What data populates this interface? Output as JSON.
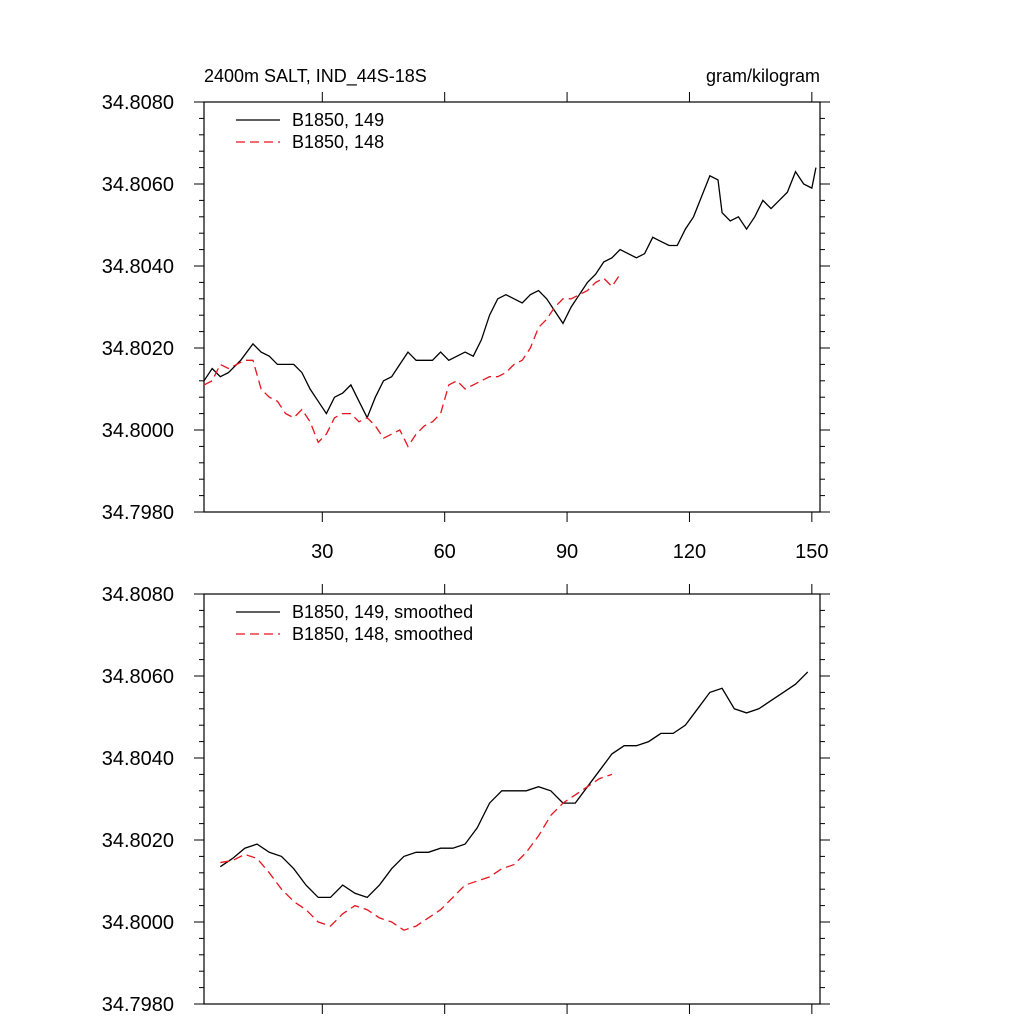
{
  "chart_data": [
    {
      "type": "line",
      "title_left": "2400m SALT, IND_44S-18S",
      "title_right": "gram/kilogram",
      "xlim": [
        1,
        152
      ],
      "ylim": [
        34.798,
        34.808
      ],
      "xticks": [
        30,
        60,
        90,
        120,
        150
      ],
      "xtick_labels": [
        "30",
        "60",
        "90",
        "120",
        "150"
      ],
      "yticks": [
        34.798,
        34.8,
        34.802,
        34.804,
        34.806,
        34.808
      ],
      "ytick_labels": [
        "34.7980",
        "34.8000",
        "34.8020",
        "34.8040",
        "34.8060",
        "34.8080"
      ],
      "legend_position": "top-left",
      "series": [
        {
          "name": "B1850, 149",
          "color": "#000000",
          "dash": "solid",
          "x": [
            1,
            3,
            5,
            7,
            10,
            13,
            15,
            17,
            19,
            21,
            23,
            25,
            27,
            29,
            31,
            33,
            35,
            37,
            39,
            41,
            43,
            45,
            47,
            49,
            51,
            53,
            55,
            57,
            59,
            61,
            63,
            65,
            67,
            69,
            71,
            73,
            75,
            77,
            79,
            81,
            83,
            85,
            87,
            89,
            91,
            93,
            95,
            97,
            99,
            101,
            103,
            105,
            107,
            109,
            111,
            113,
            115,
            117,
            119,
            121,
            123,
            125,
            127,
            128,
            130,
            132,
            134,
            136,
            138,
            140,
            142,
            144,
            146,
            148,
            150,
            151
          ],
          "values": [
            34.8012,
            34.8015,
            34.8013,
            34.8014,
            34.8017,
            34.8021,
            34.8019,
            34.8018,
            34.8016,
            34.8016,
            34.8016,
            34.8014,
            34.801,
            34.8007,
            34.8004,
            34.8008,
            34.8009,
            34.8011,
            34.8007,
            34.8003,
            34.8008,
            34.8012,
            34.8013,
            34.8016,
            34.8019,
            34.8017,
            34.8017,
            34.8017,
            34.8019,
            34.8017,
            34.8018,
            34.8019,
            34.8018,
            34.8022,
            34.8028,
            34.8032,
            34.8033,
            34.8032,
            34.8031,
            34.8033,
            34.8034,
            34.8032,
            34.8029,
            34.8026,
            34.803,
            34.8033,
            34.8036,
            34.8038,
            34.8041,
            34.8042,
            34.8044,
            34.8043,
            34.8042,
            34.8043,
            34.8047,
            34.8046,
            34.8045,
            34.8045,
            34.8049,
            34.8052,
            34.8057,
            34.8062,
            34.8061,
            34.8053,
            34.8051,
            34.8052,
            34.8049,
            34.8052,
            34.8056,
            34.8054,
            34.8056,
            34.8058,
            34.8063,
            34.806,
            34.8059,
            34.8064
          ]
        },
        {
          "name": "B1850, 148",
          "color": "#e8141e",
          "dash": "dashed",
          "x": [
            1,
            3,
            5,
            7,
            9,
            11,
            13,
            15,
            17,
            19,
            21,
            23,
            25,
            27,
            29,
            31,
            33,
            35,
            37,
            39,
            41,
            43,
            45,
            47,
            49,
            51,
            53,
            55,
            57,
            59,
            61,
            63,
            65,
            67,
            69,
            71,
            73,
            75,
            77,
            79,
            81,
            83,
            85,
            87,
            89,
            91,
            93,
            95,
            97,
            99,
            101,
            103
          ],
          "values": [
            34.8011,
            34.8012,
            34.8016,
            34.8015,
            34.8016,
            34.8017,
            34.8017,
            34.801,
            34.8008,
            34.8007,
            34.8004,
            34.8003,
            34.8005,
            34.8002,
            34.7997,
            34.7999,
            34.8003,
            34.8004,
            34.8004,
            34.8002,
            34.8003,
            34.8001,
            34.7998,
            34.7999,
            34.8,
            34.7996,
            34.7999,
            34.8001,
            34.8002,
            34.8004,
            34.8011,
            34.8012,
            34.801,
            34.8011,
            34.8012,
            34.8013,
            34.8013,
            34.8014,
            34.8016,
            34.8017,
            34.802,
            34.8025,
            34.8027,
            34.803,
            34.8032,
            34.8032,
            34.8033,
            34.8034,
            34.8036,
            34.8037,
            34.8035,
            34.8038
          ]
        }
      ]
    },
    {
      "type": "line",
      "xlim": [
        1,
        152
      ],
      "ylim": [
        34.798,
        34.808
      ],
      "xticks": [
        30,
        60,
        90,
        120,
        150
      ],
      "yticks": [
        34.798,
        34.8,
        34.802,
        34.804,
        34.806,
        34.808
      ],
      "ytick_labels": [
        "34.7980",
        "34.8000",
        "34.8020",
        "34.8040",
        "34.8060",
        "34.8080"
      ],
      "legend_position": "top-left",
      "series": [
        {
          "name": "B1850, 149, smoothed",
          "color": "#000000",
          "dash": "solid",
          "x": [
            5,
            8,
            11,
            14,
            17,
            20,
            23,
            26,
            29,
            32,
            35,
            38,
            41,
            44,
            47,
            50,
            53,
            56,
            59,
            62,
            65,
            68,
            71,
            74,
            77,
            80,
            83,
            86,
            89,
            92,
            95,
            98,
            101,
            104,
            107,
            110,
            113,
            116,
            119,
            122,
            125,
            128,
            131,
            134,
            137,
            140,
            143,
            146,
            149
          ],
          "values": [
            34.80135,
            34.80155,
            34.8018,
            34.8019,
            34.8017,
            34.8016,
            34.8013,
            34.8009,
            34.8006,
            34.8006,
            34.8009,
            34.8007,
            34.8006,
            34.8009,
            34.8013,
            34.8016,
            34.8017,
            34.8017,
            34.8018,
            34.8018,
            34.8019,
            34.8023,
            34.8029,
            34.8032,
            34.8032,
            34.8032,
            34.8033,
            34.8032,
            34.8029,
            34.8029,
            34.8033,
            34.8037,
            34.8041,
            34.8043,
            34.8043,
            34.8044,
            34.8046,
            34.8046,
            34.8048,
            34.8052,
            34.8056,
            34.8057,
            34.8052,
            34.8051,
            34.8052,
            34.8054,
            34.8056,
            34.8058,
            34.8061
          ]
        },
        {
          "name": "B1850, 148, smoothed",
          "color": "#e8141e",
          "dash": "dashed",
          "x": [
            5,
            8,
            11,
            14,
            17,
            20,
            23,
            26,
            29,
            32,
            35,
            38,
            41,
            44,
            47,
            50,
            53,
            56,
            59,
            62,
            65,
            68,
            71,
            74,
            77,
            80,
            83,
            86,
            89,
            92,
            95,
            98,
            101
          ],
          "values": [
            34.80145,
            34.8015,
            34.80165,
            34.80155,
            34.8012,
            34.8008,
            34.8005,
            34.8003,
            34.8,
            34.7999,
            34.8002,
            34.8004,
            34.8003,
            34.8001,
            34.8,
            34.7998,
            34.7999,
            34.8001,
            34.8003,
            34.8006,
            34.8009,
            34.801,
            34.8011,
            34.8013,
            34.8014,
            34.8017,
            34.8021,
            34.8026,
            34.8029,
            34.8031,
            34.8033,
            34.8035,
            34.8036
          ]
        }
      ]
    }
  ]
}
